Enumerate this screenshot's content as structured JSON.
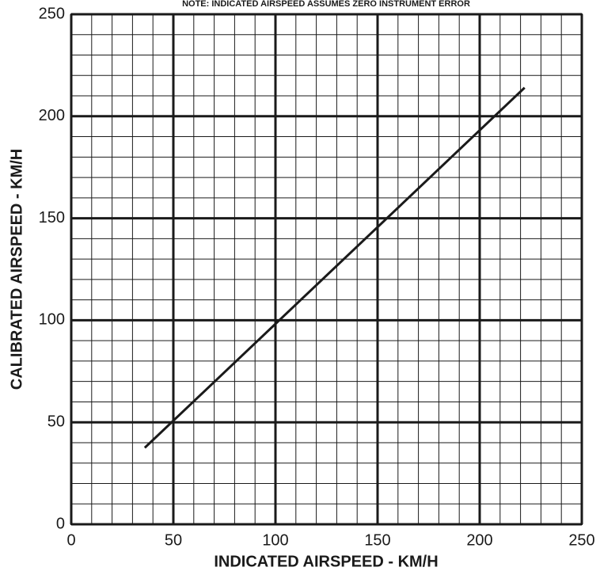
{
  "chart_data": {
    "type": "line",
    "note": "NOTE: INDICATED AIRSPEED ASSUMES ZERO INSTRUMENT ERROR",
    "x_label": "INDICATED AIRSPEED - KM/H",
    "y_label": "CALIBRATED AIRSPEED - KM/H",
    "series": [
      {
        "color": "#1a1a1a",
        "x": [
          36,
          222
        ],
        "values": [
          37.5,
          214
        ]
      }
    ],
    "xlim": [
      0,
      250
    ],
    "ylim": [
      0,
      250
    ],
    "xticks": [
      0,
      50,
      100,
      150,
      200,
      250
    ],
    "yticks": [
      0,
      50,
      100,
      150,
      200,
      250
    ],
    "grid": true,
    "minor_grid_step": 10
  }
}
